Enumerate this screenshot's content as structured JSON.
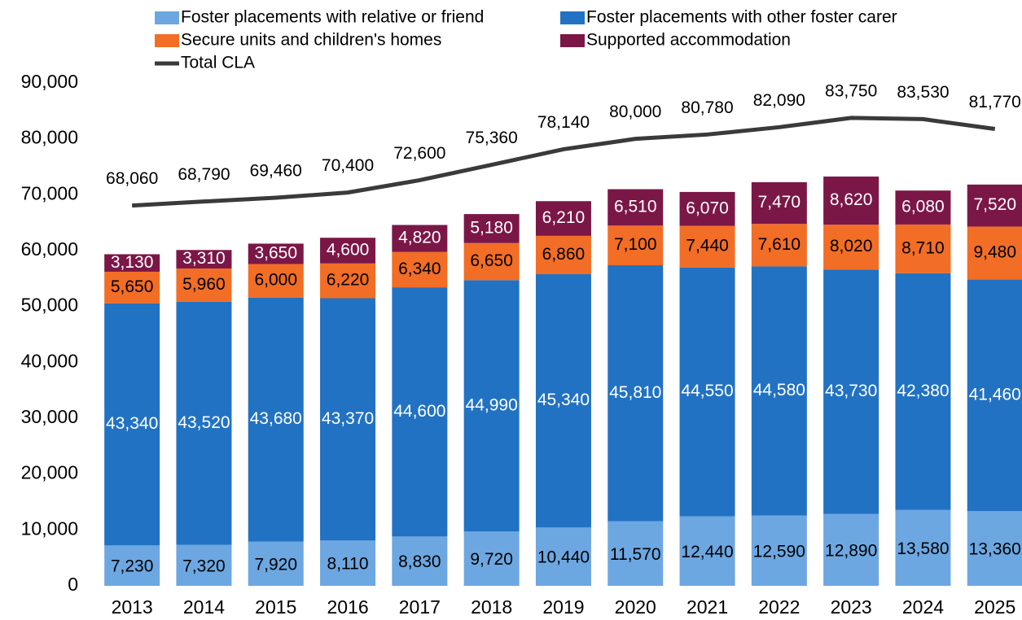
{
  "chart_data": {
    "type": "bar",
    "categories": [
      "2013",
      "2014",
      "2015",
      "2016",
      "2017",
      "2018",
      "2019",
      "2020",
      "2021",
      "2022",
      "2023",
      "2024",
      "2025"
    ],
    "series": [
      {
        "name": "Foster placements with relative or friend",
        "color": "#6ca7e1",
        "label_color": "#000000",
        "values": [
          7230,
          7320,
          7920,
          8110,
          8830,
          9720,
          10440,
          11570,
          12440,
          12590,
          12890,
          13580,
          13360
        ],
        "value_labels": [
          "7,230",
          "7,320",
          "7,920",
          "8,110",
          "8,830",
          "9,720",
          "10,440",
          "11,570",
          "12,440",
          "12,590",
          "12,890",
          "13,580",
          "13,360"
        ]
      },
      {
        "name": "Foster placements with other foster carer",
        "color": "#2272c3",
        "label_color": "#ffffff",
        "values": [
          43340,
          43520,
          43680,
          43370,
          44600,
          44990,
          45340,
          45810,
          44550,
          44580,
          43730,
          42380,
          41460
        ],
        "value_labels": [
          "43,340",
          "43,520",
          "43,680",
          "43,370",
          "44,600",
          "44,990",
          "45,340",
          "45,810",
          "44,550",
          "44,580",
          "43,730",
          "42,380",
          "41,460"
        ]
      },
      {
        "name": "Secure units and children's homes",
        "color": "#f26d25",
        "label_color": "#000000",
        "values": [
          5650,
          5960,
          6000,
          6220,
          6340,
          6650,
          6860,
          7100,
          7440,
          7610,
          8020,
          8710,
          9480
        ],
        "value_labels": [
          "5,650",
          "5,960",
          "6,000",
          "6,220",
          "6,340",
          "6,650",
          "6,860",
          "7,100",
          "7,440",
          "7,610",
          "8,020",
          "8,710",
          "9,480"
        ]
      },
      {
        "name": "Supported accommodation",
        "color": "#7b1747",
        "label_color": "#ffffff",
        "values": [
          3130,
          3310,
          3650,
          4600,
          4820,
          5180,
          6210,
          6510,
          6070,
          7470,
          8620,
          6080,
          7520
        ],
        "value_labels": [
          "3,130",
          "3,310",
          "3,650",
          "4,600",
          "4,820",
          "5,180",
          "6,210",
          "6,510",
          "6,070",
          "7,470",
          "8,620",
          "6,080",
          "7,520"
        ]
      },
      {
        "name": "Total CLA",
        "type": "line",
        "color": "#3a3a3a",
        "label_color": "#000000",
        "values": [
          68060,
          68790,
          69460,
          70400,
          72600,
          75360,
          78140,
          80000,
          80780,
          82090,
          83750,
          83530,
          81770
        ],
        "value_labels": [
          "68,060",
          "68,790",
          "69,460",
          "70,400",
          "72,600",
          "75,360",
          "78,140",
          "80,000",
          "80,780",
          "82,090",
          "83,750",
          "83,530",
          "81,770"
        ]
      }
    ],
    "ylim": [
      0,
      90000
    ],
    "yticks": [
      0,
      {
        "value": 10000,
        "label": "10,000"
      },
      {
        "value": 20000,
        "label": "20,000"
      },
      {
        "value": 30000,
        "label": "30,000"
      },
      {
        "value": 40000,
        "label": "40,000"
      },
      {
        "value": 50000,
        "label": "50,000"
      },
      {
        "value": 60000,
        "label": "60,000"
      },
      {
        "value": 70000,
        "label": "70,000"
      },
      {
        "value": 80000,
        "label": "80,000"
      },
      {
        "value": 90000,
        "label": "90,000"
      }
    ],
    "legend": "top",
    "grid": false
  }
}
